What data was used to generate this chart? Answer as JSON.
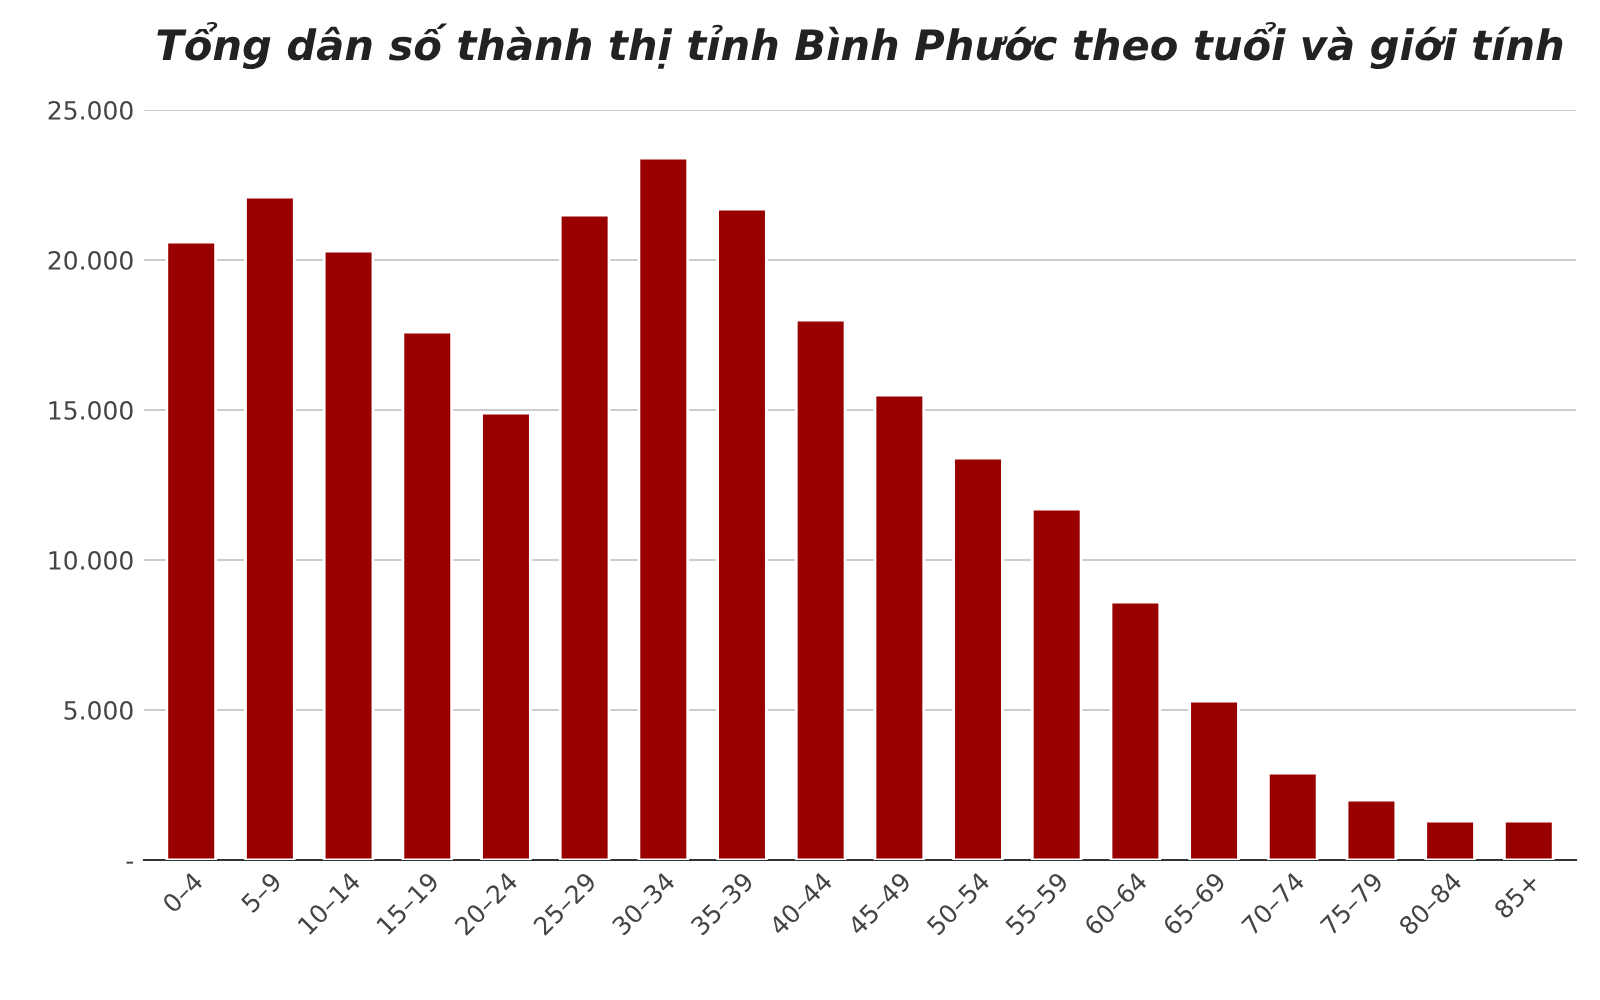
{
  "chart_data": {
    "type": "bar",
    "title": "Tổng dân số thành thị tỉnh Bình Phước theo tuổi và giới tính",
    "categories": [
      "0–4",
      "5–9",
      "10–14",
      "15–19",
      "20–24",
      "25–29",
      "30–34",
      "35–39",
      "40–44",
      "45–49",
      "50–54",
      "55–59",
      "60–64",
      "65–69",
      "70–74",
      "75–79",
      "80–84",
      "85+"
    ],
    "values": [
      20600,
      22100,
      20300,
      17600,
      14900,
      21500,
      23400,
      21700,
      18000,
      15500,
      13400,
      11700,
      8600,
      5300,
      2900,
      2000,
      1300,
      1300
    ],
    "color": "#990000",
    "ylim": [
      0,
      25000
    ],
    "yticks": [
      {
        "value": 0,
        "label": "-"
      },
      {
        "value": 5000,
        "label": "5.000"
      },
      {
        "value": 10000,
        "label": "10.000"
      },
      {
        "value": 15000,
        "label": "15.000"
      },
      {
        "value": 20000,
        "label": "20.000"
      },
      {
        "value": 25000,
        "label": "25.000"
      }
    ],
    "grid": "y"
  }
}
